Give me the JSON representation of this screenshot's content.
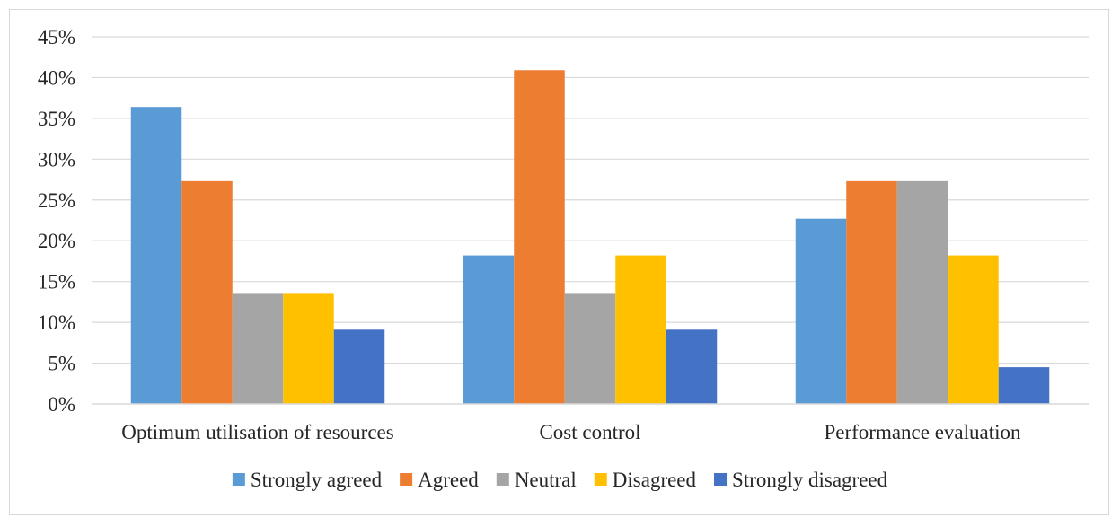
{
  "chart_data": {
    "type": "bar",
    "title": "",
    "xlabel": "",
    "ylabel": "",
    "ylim": [
      0,
      45
    ],
    "ytick_step": 5,
    "ytick_labels": [
      "0%",
      "5%",
      "10%",
      "15%",
      "20%",
      "25%",
      "30%",
      "35%",
      "40%",
      "45%"
    ],
    "grid": true,
    "legend_position": "bottom",
    "categories": [
      "Optimum utilisation of resources",
      "Cost control",
      "Performance evaluation"
    ],
    "series": [
      {
        "name": "Strongly agreed",
        "color": "#5b9bd5",
        "values": [
          36.4,
          18.2,
          22.7
        ]
      },
      {
        "name": "Agreed",
        "color": "#ed7d31",
        "values": [
          27.3,
          40.9,
          27.3
        ]
      },
      {
        "name": "Neutral",
        "color": "#a5a5a5",
        "values": [
          13.6,
          13.6,
          27.3
        ]
      },
      {
        "name": "Disagreed",
        "color": "#ffc000",
        "values": [
          13.6,
          18.2,
          18.2
        ]
      },
      {
        "name": "Strongly disagreed",
        "color": "#4472c4",
        "values": [
          9.1,
          9.1,
          4.5
        ]
      }
    ]
  }
}
